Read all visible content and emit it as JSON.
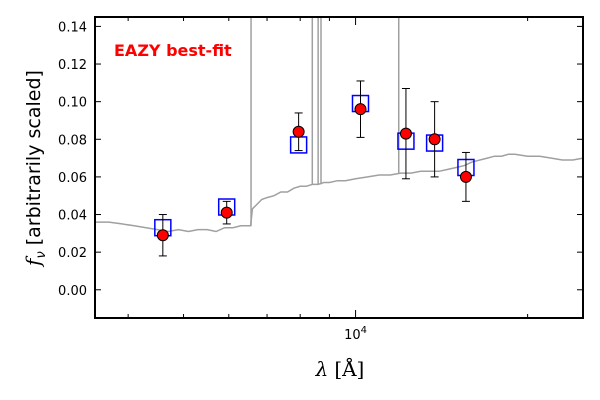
{
  "chart_data": {
    "type": "scatter",
    "annotation": "EAZY best-fit",
    "xlabel_symbol": "λ",
    "xlabel_unit": "[Å]",
    "ylabel_symbol": "f",
    "ylabel_sub": "ν",
    "ylabel_text": "[arbitrarily scaled]",
    "x_scale": "log",
    "xlim": [
      3500,
      25000
    ],
    "ylim": [
      -0.015,
      0.145
    ],
    "yticks": [
      0.0,
      0.02,
      0.04,
      0.06,
      0.08,
      0.1,
      0.12,
      0.14
    ],
    "ytick_labels": [
      "0.00",
      "0.02",
      "0.04",
      "0.06",
      "0.08",
      "0.10",
      "0.12",
      "0.14"
    ],
    "xtick_major": [
      10000
    ],
    "xtick_major_label_base": "10",
    "xtick_major_label_exp": "4",
    "xtick_minor": [
      4000,
      5000,
      6000,
      7000,
      8000,
      9000,
      20000
    ],
    "grid": false,
    "colors": {
      "template": "#a0a0a0",
      "observed_fill": "#ff0000",
      "observed_edge": "#000000",
      "model_box": "#0000ff",
      "annotation": "#ff0000"
    },
    "series": [
      {
        "kind": "observed",
        "x": [
          4600,
          5950,
          7950,
          10200,
          12250,
          13750,
          15600
        ],
        "y": [
          0.029,
          0.041,
          0.084,
          0.096,
          0.083,
          0.08,
          0.06
        ],
        "yerr": [
          0.011,
          0.006,
          0.01,
          0.015,
          0.024,
          0.02,
          0.013
        ]
      },
      {
        "kind": "model",
        "x": [
          4600,
          5950,
          7950,
          10200,
          12250,
          13750,
          15600
        ],
        "y": [
          0.033,
          0.044,
          0.077,
          0.099,
          0.079,
          0.078,
          0.065
        ]
      },
      {
        "kind": "template",
        "x": [
          3500,
          3700,
          3900,
          4100,
          4300,
          4500,
          4700,
          4900,
          5100,
          5300,
          5500,
          5700,
          5900,
          6100,
          6300,
          6450,
          6550,
          6600,
          6700,
          6850,
          7000,
          7200,
          7400,
          7600,
          7800,
          8000,
          8200,
          8400,
          8600,
          8800,
          9000,
          9300,
          9600,
          10000,
          10500,
          11000,
          11500,
          12000,
          12500,
          13000,
          13500,
          14000,
          14500,
          15000,
          15500,
          16000,
          16500,
          17000,
          17500,
          18000,
          18500,
          19000,
          20000,
          21000,
          22000,
          23000,
          24000,
          25000
        ],
        "y": [
          0.036,
          0.036,
          0.035,
          0.034,
          0.033,
          0.032,
          0.031,
          0.032,
          0.031,
          0.032,
          0.032,
          0.031,
          0.033,
          0.033,
          0.034,
          0.034,
          0.034,
          0.043,
          0.045,
          0.048,
          0.049,
          0.05,
          0.052,
          0.052,
          0.054,
          0.055,
          0.055,
          0.056,
          0.056,
          0.057,
          0.057,
          0.058,
          0.058,
          0.059,
          0.06,
          0.061,
          0.061,
          0.062,
          0.062,
          0.063,
          0.063,
          0.063,
          0.064,
          0.065,
          0.066,
          0.068,
          0.069,
          0.07,
          0.071,
          0.071,
          0.072,
          0.072,
          0.071,
          0.071,
          0.07,
          0.069,
          0.069,
          0.07
        ]
      },
      {
        "kind": "emission_lines",
        "x": [
          6563,
          8400,
          8600,
          8700,
          11900
        ],
        "y": [
          0.145,
          0.145,
          0.145,
          0.145,
          0.145
        ]
      }
    ]
  }
}
